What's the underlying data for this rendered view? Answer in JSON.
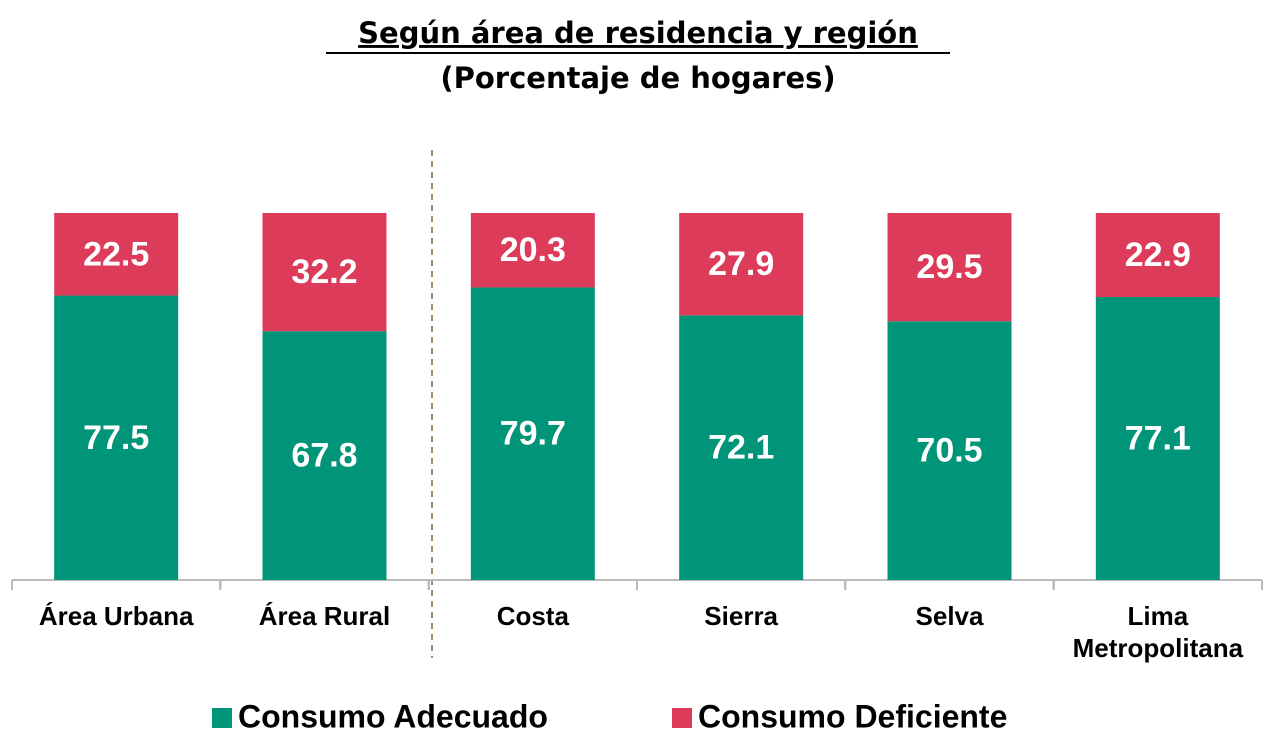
{
  "chart_data": {
    "type": "stacked_bar",
    "title": "Según área de residencia y región",
    "subtitle": "(Porcentaje de hogares)",
    "categories": [
      "Área Urbana",
      "Área Rural",
      "Costa",
      "Sierra",
      "Selva",
      "Lima Metropolitana"
    ],
    "series": [
      {
        "name": "Consumo Adecuado",
        "color": "#009479",
        "values": [
          77.5,
          67.8,
          79.7,
          72.1,
          70.5,
          77.1
        ]
      },
      {
        "name": "Consumo Deficiente",
        "color": "#dc3c5a",
        "values": [
          22.5,
          32.2,
          20.3,
          27.9,
          29.5,
          22.9
        ]
      }
    ],
    "ylim": [
      0,
      100
    ]
  }
}
